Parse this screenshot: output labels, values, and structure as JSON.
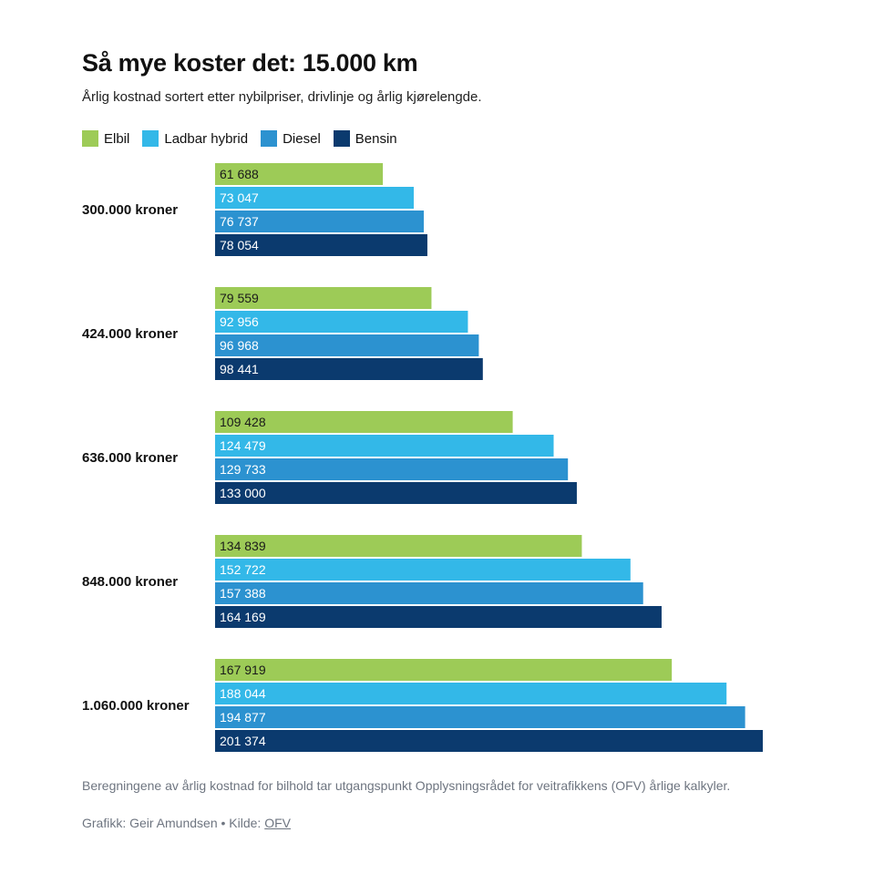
{
  "title": "Så mye koster det: 15.000 km",
  "subtitle": "Årlig kostnad sortert etter nybilpriser, drivlinje og årlig kjørelengde.",
  "footnote": "Beregningene av årlig kostnad for bilhold tar utgangspunkt Opplysningsrådet for veitrafikkens (OFV) årlige kalkyler.",
  "credit": {
    "prefix": "Grafikk: Geir Amundsen • Kilde: ",
    "source_link": "OFV"
  },
  "colors": {
    "elbil": "#9dcb57",
    "ladbar_hybrid": "#33b8e8",
    "diesel": "#2c92d0",
    "bensin": "#0b3a6e"
  },
  "chart_data": {
    "type": "bar",
    "orientation": "horizontal",
    "title": "Så mye koster det: 15.000 km",
    "legend_position": "top-left",
    "categories": [
      "300.000 kroner",
      "424.000 kroner",
      "636.000 kroner",
      "848.000 kroner",
      "1.060.000 kroner"
    ],
    "series": [
      {
        "name": "Elbil",
        "color": "#9dcb57",
        "label_color": "#1a1a1a",
        "values": [
          61688,
          79559,
          109428,
          134839,
          167919
        ],
        "labels": [
          "61 688",
          "79 559",
          "109 428",
          "134 839",
          "167 919"
        ]
      },
      {
        "name": "Ladbar hybrid",
        "color": "#33b8e8",
        "label_color": "#ffffff",
        "values": [
          73047,
          92956,
          124479,
          152722,
          188044
        ],
        "labels": [
          "73 047",
          "92 956",
          "124 479",
          "152 722",
          "188 044"
        ]
      },
      {
        "name": "Diesel",
        "color": "#2c92d0",
        "label_color": "#ffffff",
        "values": [
          76737,
          96968,
          129733,
          157388,
          194877
        ],
        "labels": [
          "76 737",
          "96 968",
          "129 733",
          "157 388",
          "194 877"
        ]
      },
      {
        "name": "Bensin",
        "color": "#0b3a6e",
        "label_color": "#ffffff",
        "values": [
          78054,
          98441,
          133000,
          164169,
          201374
        ],
        "labels": [
          "78 054",
          "98 441",
          "133 000",
          "164 169",
          "201 374"
        ]
      }
    ],
    "xlim": [
      0,
      201374
    ],
    "grid": false
  }
}
